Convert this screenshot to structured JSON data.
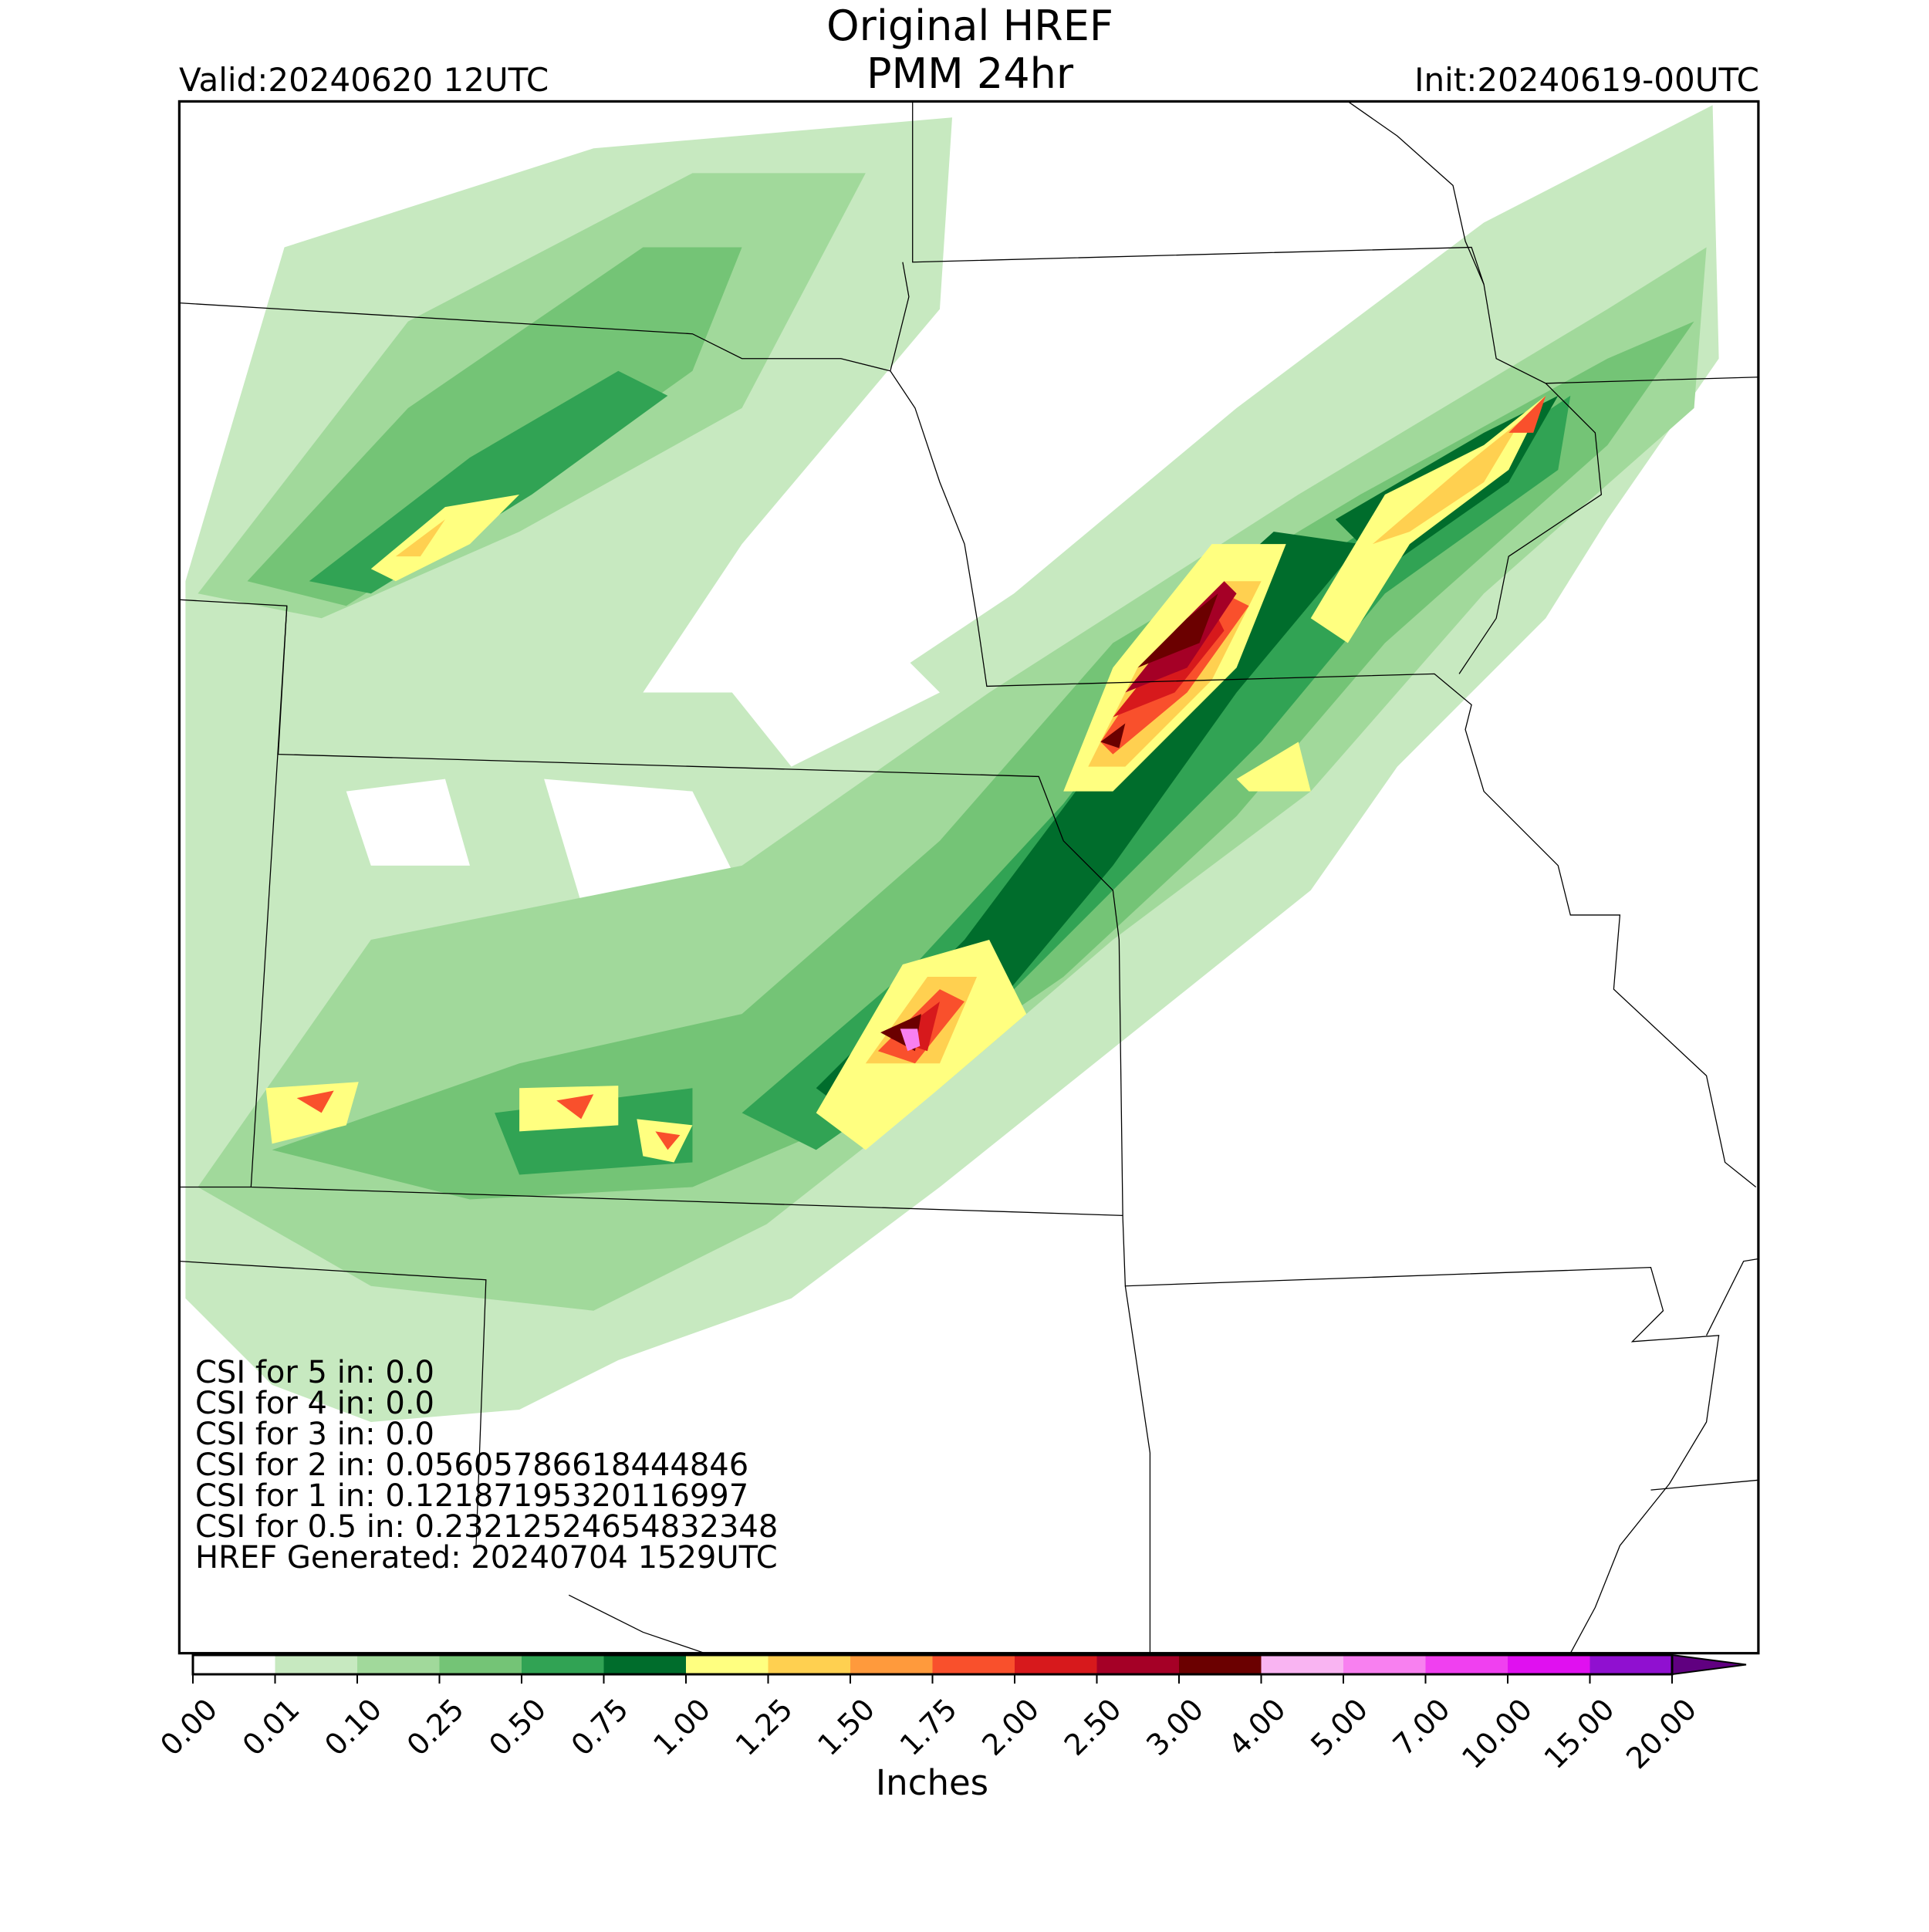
{
  "header": {
    "title": "Original HREF",
    "subtitle": "PMM 24hr",
    "valid": "Valid:20240620 12UTC",
    "init": "Init:20240619-00UTC"
  },
  "stats": [
    "CSI for 5 in: 0.0",
    "CSI for 4 in: 0.0",
    "CSI for 3 in: 0.0",
    "CSI for 2 in: 0.05605786618444846",
    "CSI for 1 in: 0.12187195320116997",
    "CSI for 0.5 in: 0.23212524654832348",
    "HREF Generated: 20240704 1529UTC"
  ],
  "colorbar": {
    "label": "Inches",
    "ticks": [
      {
        "value": 0,
        "label": "0.00"
      },
      {
        "value": 0.01,
        "label": "0.01"
      },
      {
        "value": 0.1,
        "label": "0.10"
      },
      {
        "value": 0.25,
        "label": "0.25"
      },
      {
        "value": 0.5,
        "label": "0.50"
      },
      {
        "value": 0.75,
        "label": "0.75"
      },
      {
        "value": 1,
        "label": "1.00"
      },
      {
        "value": 1.25,
        "label": "1.25"
      },
      {
        "value": 1.5,
        "label": "1.50"
      },
      {
        "value": 1.75,
        "label": "1.75"
      },
      {
        "value": 2,
        "label": "2.00"
      },
      {
        "value": 2.5,
        "label": "2.50"
      },
      {
        "value": 3,
        "label": "3.00"
      },
      {
        "value": 4,
        "label": "4.00"
      },
      {
        "value": 5,
        "label": "5.00"
      },
      {
        "value": 7,
        "label": "7.00"
      },
      {
        "value": 10,
        "label": "10.00"
      },
      {
        "value": 15,
        "label": "15.00"
      },
      {
        "value": 20,
        "label": "20.00"
      }
    ],
    "colors": [
      "#ffffff",
      "#c7e9c0",
      "#a1d99b",
      "#74c476",
      "#31a354",
      "#006d2c",
      "#ffff80",
      "#ffd050",
      "#ff9a3c",
      "#f9502c",
      "#d7191c",
      "#a50026",
      "#6b0000",
      "#f9b4f2",
      "#f880f0",
      "#f040f0",
      "#e010f0",
      "#9010d0"
    ],
    "extend_color": "#600080"
  }
}
